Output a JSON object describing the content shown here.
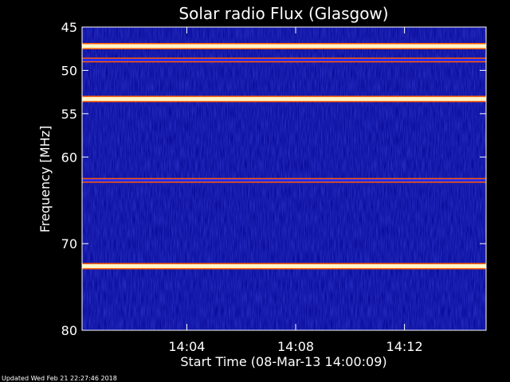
{
  "chart_data": {
    "type": "heatmap",
    "title": "Solar radio Flux (Glasgow)",
    "xlabel": "Start Time (08-Mar-13 14:00:09)",
    "ylabel": "Frequency [MHz]",
    "ylim": [
      80,
      45
    ],
    "y_ticks": [
      {
        "value": 45,
        "label": "45"
      },
      {
        "value": 50,
        "label": "50"
      },
      {
        "value": 55,
        "label": "55"
      },
      {
        "value": 60,
        "label": "60"
      },
      {
        "value": 70,
        "label": "70"
      },
      {
        "value": 80,
        "label": "80"
      }
    ],
    "x_ticks": [
      {
        "value": 4,
        "label": "14:04"
      },
      {
        "value": 8,
        "label": "14:08"
      },
      {
        "value": 12,
        "label": "14:12"
      }
    ],
    "xlim_minutes": [
      0.15,
      15.0
    ],
    "intense_bands_mhz": [
      {
        "freq": 47.2,
        "intensity": "high"
      },
      {
        "freq": 48.8,
        "intensity": "medium"
      },
      {
        "freq": 53.3,
        "intensity": "high"
      },
      {
        "freq": 62.7,
        "intensity": "medium"
      },
      {
        "freq": 72.6,
        "intensity": "high"
      }
    ],
    "colors": {
      "background": "#000000",
      "low": "#00008c",
      "medium": "#1e28ff",
      "high": "#fff5c8",
      "edge": "#ff5a00"
    }
  },
  "footer": "Updated Wed Feb 21 22:27:46 2018"
}
